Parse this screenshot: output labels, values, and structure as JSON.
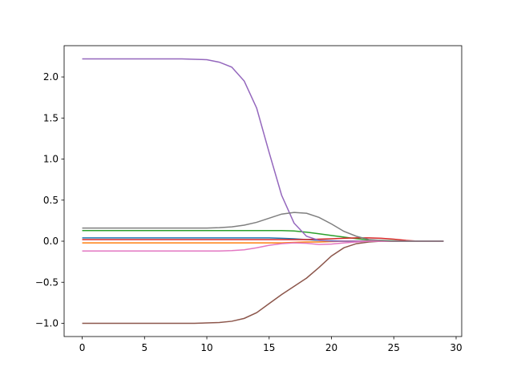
{
  "chart_data": {
    "type": "line",
    "x": [
      0,
      1,
      2,
      3,
      4,
      5,
      6,
      7,
      8,
      9,
      10,
      11,
      12,
      13,
      14,
      15,
      16,
      17,
      18,
      19,
      20,
      21,
      22,
      23,
      24,
      25,
      26,
      27,
      28,
      29
    ],
    "series": [
      {
        "color": "#1f77b4",
        "values": [
          0.04,
          0.04,
          0.04,
          0.04,
          0.04,
          0.04,
          0.04,
          0.04,
          0.04,
          0.04,
          0.04,
          0.04,
          0.04,
          0.04,
          0.04,
          0.04,
          0.035,
          0.03,
          0.02,
          0.01,
          0.005,
          0,
          0,
          0,
          0,
          0,
          0,
          0,
          0,
          0
        ]
      },
      {
        "color": "#ff7f0e",
        "values": [
          -0.02,
          -0.02,
          -0.02,
          -0.02,
          -0.02,
          -0.02,
          -0.02,
          -0.02,
          -0.02,
          -0.02,
          -0.02,
          -0.02,
          -0.02,
          -0.02,
          -0.02,
          -0.02,
          -0.02,
          -0.015,
          -0.01,
          -0.01,
          -0.005,
          0,
          0,
          0,
          0,
          0,
          0,
          0,
          0,
          0
        ]
      },
      {
        "color": "#2ca02c",
        "values": [
          0.13,
          0.13,
          0.13,
          0.13,
          0.13,
          0.13,
          0.13,
          0.13,
          0.13,
          0.13,
          0.13,
          0.13,
          0.13,
          0.13,
          0.13,
          0.13,
          0.13,
          0.125,
          0.11,
          0.09,
          0.07,
          0.05,
          0.03,
          0.015,
          0.01,
          0.005,
          0,
          0,
          0,
          0
        ]
      },
      {
        "color": "#d62728",
        "values": [
          0.02,
          0.02,
          0.02,
          0.02,
          0.02,
          0.02,
          0.02,
          0.02,
          0.02,
          0.02,
          0.02,
          0.02,
          0.02,
          0.02,
          0.02,
          0.02,
          0.02,
          0.02,
          0.02,
          0.025,
          0.03,
          0.035,
          0.04,
          0.04,
          0.035,
          0.025,
          0.01,
          0,
          0,
          0
        ]
      },
      {
        "color": "#9467bd",
        "values": [
          2.22,
          2.22,
          2.22,
          2.22,
          2.22,
          2.22,
          2.22,
          2.22,
          2.22,
          2.215,
          2.21,
          2.18,
          2.12,
          1.95,
          1.62,
          1.08,
          0.56,
          0.22,
          0.06,
          0.01,
          0,
          0,
          0,
          0,
          0,
          0,
          0,
          0,
          0,
          0
        ]
      },
      {
        "color": "#8c564b",
        "values": [
          -1.0,
          -1.0,
          -1.0,
          -1.0,
          -1.0,
          -1.0,
          -1.0,
          -1.0,
          -1.0,
          -1.0,
          -0.995,
          -0.99,
          -0.975,
          -0.94,
          -0.87,
          -0.76,
          -0.65,
          -0.55,
          -0.45,
          -0.32,
          -0.18,
          -0.08,
          -0.03,
          -0.01,
          0,
          0,
          0,
          0,
          0,
          0
        ]
      },
      {
        "color": "#e377c2",
        "values": [
          -0.12,
          -0.12,
          -0.12,
          -0.12,
          -0.12,
          -0.12,
          -0.12,
          -0.12,
          -0.12,
          -0.12,
          -0.12,
          -0.12,
          -0.115,
          -0.105,
          -0.08,
          -0.05,
          -0.03,
          -0.02,
          -0.025,
          -0.04,
          -0.035,
          -0.02,
          -0.01,
          0,
          0,
          0,
          0,
          0,
          0,
          0
        ]
      },
      {
        "color": "#7f7f7f",
        "values": [
          0.16,
          0.16,
          0.16,
          0.16,
          0.16,
          0.16,
          0.16,
          0.16,
          0.16,
          0.16,
          0.16,
          0.165,
          0.175,
          0.195,
          0.23,
          0.28,
          0.33,
          0.35,
          0.34,
          0.29,
          0.21,
          0.12,
          0.06,
          0.02,
          0.01,
          0,
          0,
          0,
          0,
          0
        ]
      }
    ],
    "xlim": [
      -1.45,
      30.45
    ],
    "xticks": [
      0,
      5,
      10,
      15,
      20,
      25,
      30
    ],
    "ylim": [
      -1.161,
      2.381
    ],
    "yticks": [
      {
        "value": -1.0,
        "label": "−1.0"
      },
      {
        "value": -0.5,
        "label": "−0.5"
      },
      {
        "value": 0.0,
        "label": "0.0"
      },
      {
        "value": 0.5,
        "label": "0.5"
      },
      {
        "value": 1.0,
        "label": "1.0"
      },
      {
        "value": 1.5,
        "label": "1.5"
      },
      {
        "value": 2.0,
        "label": "2.0"
      }
    ],
    "grid": false
  }
}
